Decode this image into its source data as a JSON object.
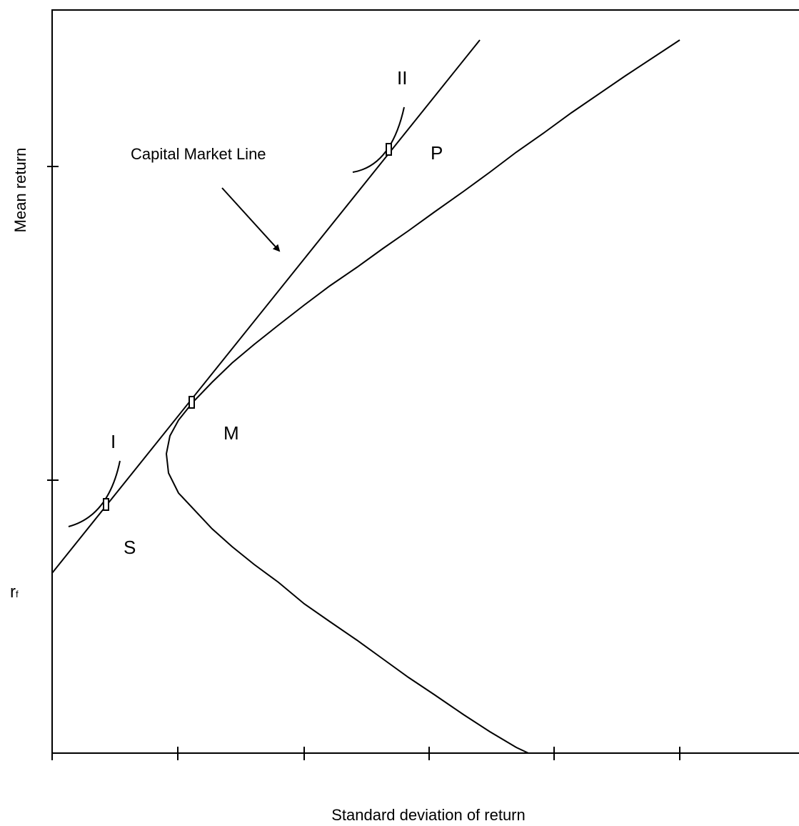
{
  "axes": {
    "y_label": "Mean return",
    "x_label": "Standard deviation of return"
  },
  "annotations": {
    "cml": "Capital Market Line",
    "ii": "II",
    "p": "P",
    "m": "M",
    "i": "I",
    "s": "S",
    "rf": {
      "main": "r",
      "sub": "f"
    }
  }
}
